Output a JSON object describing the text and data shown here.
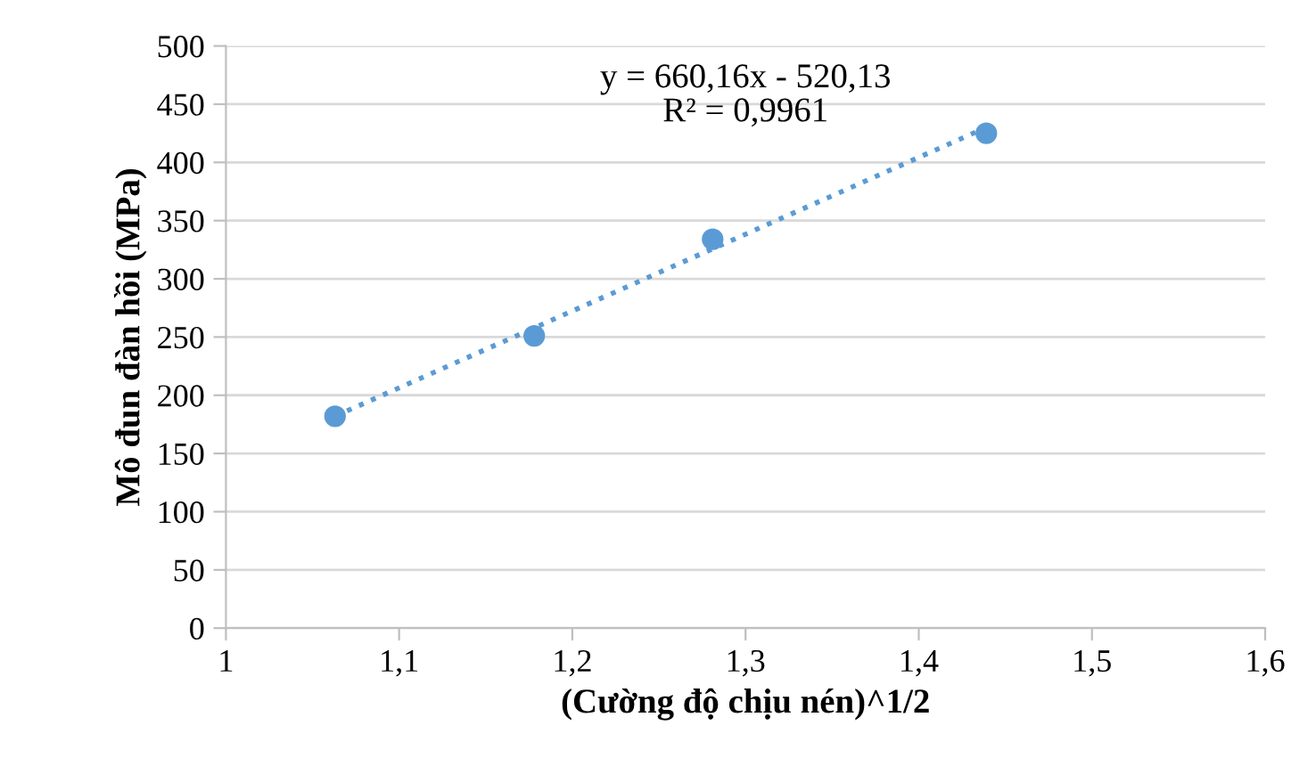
{
  "chart_data": {
    "type": "scatter",
    "xlabel": "(Cường độ chịu nén)^1/2",
    "ylabel": "Mô đun đàn hồi (MPa)",
    "annotations": [
      "y = 660,16x - 520,13\nR² = 0,9961"
    ],
    "series": [
      {
        "color": "#5b9bd5",
        "marker": "circle",
        "x": [
          1.063,
          1.178,
          1.281,
          1.439
        ],
        "values": [
          182,
          251,
          334,
          425
        ]
      },
      {
        "type": "line",
        "color": "#5b9bd5",
        "line_style": "dotted",
        "marker": "none",
        "x": [
          1.063,
          1.439
        ],
        "values": [
          182,
          430
        ]
      }
    ],
    "xlim": [
      1,
      1.6
    ],
    "xticks": [
      {
        "value": 1,
        "label": "1"
      },
      {
        "value": 1.1,
        "label": "1,1"
      },
      {
        "value": 1.2,
        "label": "1,2"
      },
      {
        "value": 1.3,
        "label": "1,3"
      },
      {
        "value": 1.4,
        "label": "1,4"
      },
      {
        "value": 1.5,
        "label": "1,5"
      },
      {
        "value": 1.6,
        "label": "1,6"
      }
    ],
    "ylim": [
      0,
      500
    ],
    "yticks": [
      0,
      50,
      100,
      150,
      200,
      250,
      300,
      350,
      400,
      450,
      500
    ],
    "grid": "y",
    "legend": false
  }
}
